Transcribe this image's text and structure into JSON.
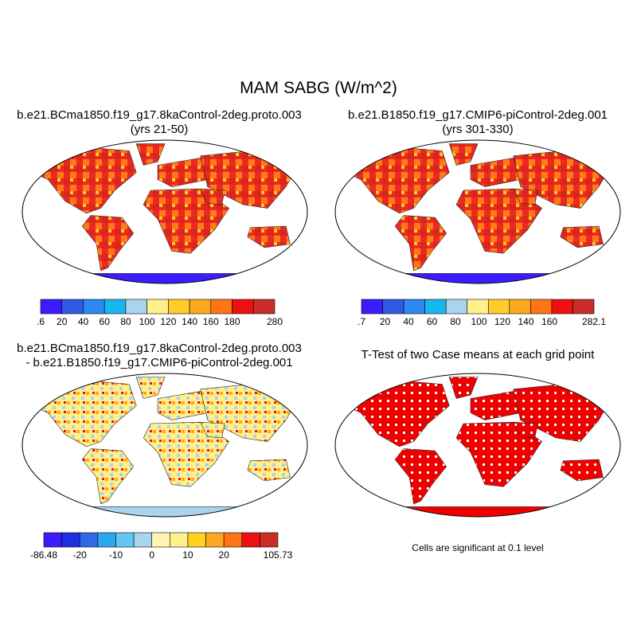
{
  "figure": {
    "title": "MAM SABG (W/m^2)",
    "note": "Cells are significant at 0.1 level"
  },
  "panels": [
    {
      "title_line1": "b.e21.BCma1850.f19_g17.8kaControl-2deg.proto.003",
      "title_line2": "(yrs 21-50)",
      "colorbar": {
        "labels": [
          ".6",
          "20",
          "40",
          "60",
          "80",
          "100",
          "120",
          "140",
          "160",
          "180",
          "280"
        ],
        "colors": [
          "#3a1cff",
          "#2f5be3",
          "#2f88f0",
          "#19b5f0",
          "#a8d4ee",
          "#fff08c",
          "#ffcc2a",
          "#ffa81f",
          "#ff7414",
          "#ee1010",
          "#c82d2a"
        ]
      }
    },
    {
      "title_line1": "b.e21.B1850.f19_g17.CMIP6-piControl-2deg.001",
      "title_line2": "(yrs 301-330)",
      "colorbar": {
        "labels": [
          ".7",
          "20",
          "40",
          "60",
          "80",
          "100",
          "120",
          "140",
          "160",
          "282.1"
        ],
        "colors": [
          "#3a1cff",
          "#2f5be3",
          "#2f88f0",
          "#19b5f0",
          "#a8d4ee",
          "#fff08c",
          "#ffcc2a",
          "#ffa81f",
          "#ff7414",
          "#ee1010",
          "#c82d2a"
        ]
      }
    },
    {
      "title_line1": "b.e21.BCma1850.f19_g17.8kaControl-2deg.proto.003",
      "title_line2": "- b.e21.B1850.f19_g17.CMIP6-piControl-2deg.001",
      "colorbar": {
        "labels": [
          "-86.48",
          "-20",
          "-10",
          "0",
          "10",
          "20",
          "105.73"
        ],
        "colors": [
          "#3a1cff",
          "#1f2ee0",
          "#2f69e8",
          "#2aa6f2",
          "#63c6f2",
          "#a8d4ee",
          "#fff4b0",
          "#fff08c",
          "#ffd21f",
          "#ffa81f",
          "#ff7414",
          "#ee1010",
          "#c82d2a"
        ]
      }
    },
    {
      "title_line1": "T-Test of two Case means at each grid point",
      "title_line2": ""
    }
  ],
  "map_fill": {
    "abs_field": "#ee2222",
    "diff_field": "#fff08c",
    "ttest_field": "#ee0000",
    "ocean": "#ffffff",
    "antarctica_abs": "#3a1cff",
    "antarctica_diff": "#a8d4ee",
    "antarctica_ttest": "#ee0000"
  }
}
